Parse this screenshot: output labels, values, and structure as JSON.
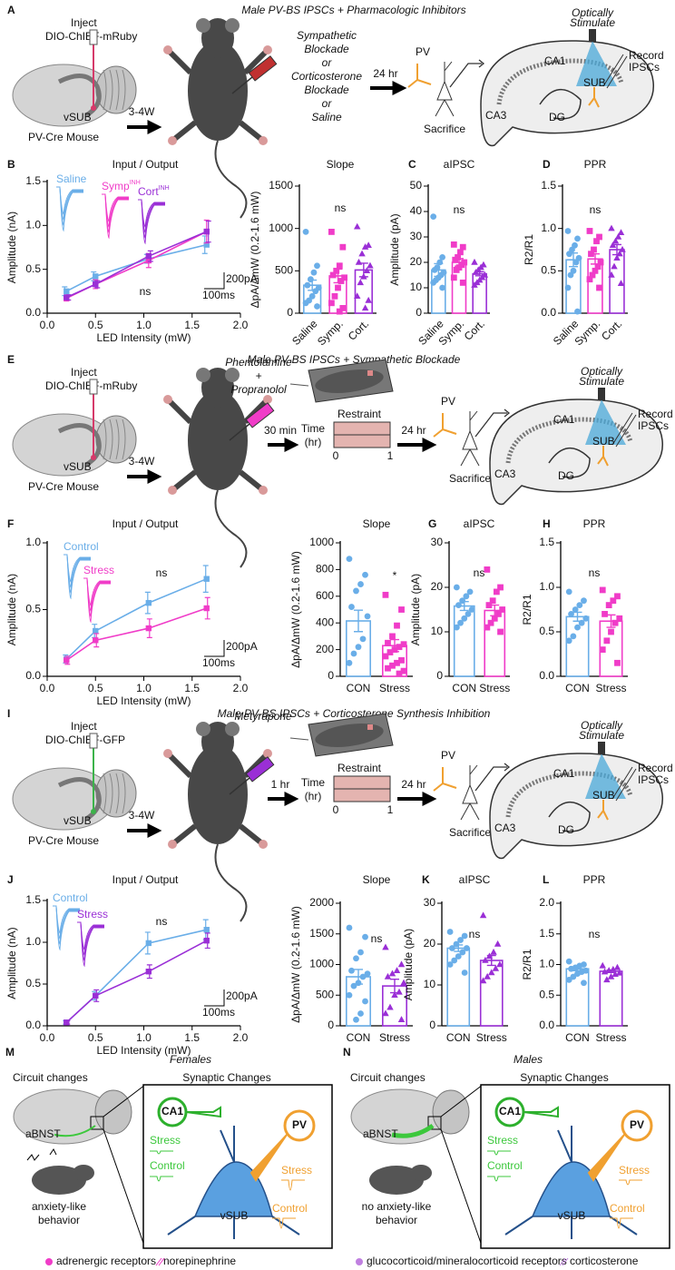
{
  "experiments": [
    {
      "letter": "A",
      "title": "Male PV-BS IPSCs + Pharmacologic Inhibitors",
      "inject": "Inject",
      "virus": "DIO-ChIEF-mRuby",
      "region": "vSUB",
      "mouse": "PV-Cre Mouse",
      "duration": "3-4W",
      "treatment": [
        "Sympathetic",
        "Blockade",
        "or",
        "Corticosterone",
        "Blockade",
        "or",
        "Saline"
      ],
      "treatment_colors": [
        "#f03cc8",
        "#f03cc8",
        "#000000",
        "#9a2fd6",
        "#9a2fd6",
        "#000000",
        "#6aaee8"
      ],
      "delay": "24 hr",
      "cell": "PV",
      "sacrifice": "Sacrifice",
      "stimulate": [
        "Optically",
        "Stimulate"
      ],
      "record": [
        "Record",
        "IPSCs"
      ],
      "areas": [
        "CA1",
        "CA3",
        "SUB",
        "DG"
      ]
    },
    {
      "letter": "E",
      "title": "Male PV-BS IPSCs + Sympathetic Blockade",
      "inject": "Inject",
      "virus": "DIO-ChIEF-mRuby",
      "region": "vSUB",
      "mouse": "PV-Cre Mouse",
      "duration": "3-4W",
      "treatment": [
        "Phentolamine",
        "+",
        "Propranolol"
      ],
      "treatment_colors": [
        "#f03cc8",
        "#000000",
        "#f03cc8"
      ],
      "wait": "30 min",
      "restraint": "Restraint",
      "time": [
        "Time",
        "(hr)"
      ],
      "time_ticks": [
        "0",
        "1"
      ],
      "delay": "24 hr",
      "cell": "PV",
      "sacrifice": "Sacrifice",
      "stimulate": [
        "Optically",
        "Stimulate"
      ],
      "record": [
        "Record",
        "IPSCs"
      ],
      "areas": [
        "CA1",
        "CA3",
        "SUB",
        "DG"
      ]
    },
    {
      "letter": "I",
      "title": "Male PV-BS IPSCs + Corticosterone Synthesis Inhibition",
      "inject": "Inject",
      "virus": "DIO-ChIEF-GFP",
      "region": "vSUB",
      "mouse": "PV-Cre Mouse",
      "duration": "3-4W",
      "treatment": [
        "Metyrapone"
      ],
      "treatment_colors": [
        "#9a2fd6"
      ],
      "wait": "1 hr",
      "restraint": "Restraint",
      "time": [
        "Time",
        "(hr)"
      ],
      "time_ticks": [
        "0",
        "1"
      ],
      "delay": "24 hr",
      "cell": "PV",
      "sacrifice": "Sacrifice",
      "stimulate": [
        "Optically",
        "Stimulate"
      ],
      "record": [
        "Record",
        "IPSCs"
      ],
      "areas": [
        "CA1",
        "CA3",
        "SUB",
        "DG"
      ]
    }
  ],
  "chart_data": [
    {
      "type": "line",
      "letter": "B",
      "title": "Input / Output",
      "xlabel": "LED Intensity (mW)",
      "ylabel": "Amplitude (nA)",
      "annotation": "ns",
      "scale": [
        "200pA",
        "100ms"
      ],
      "x": [
        0.2,
        0.5,
        1.05,
        1.65
      ],
      "xlim": [
        0,
        2
      ],
      "xticks": [
        {
          "value": 0,
          "label": "0.0"
        },
        0.5,
        {
          "value": 1,
          "label": "1.0"
        },
        1.5,
        {
          "value": 2,
          "label": "2.0"
        }
      ],
      "ylim": [
        0,
        1.5
      ],
      "yticks": [
        {
          "value": 0,
          "label": "0.0"
        },
        0.5,
        {
          "value": 1,
          "label": "1.0"
        },
        1.5
      ],
      "series": [
        {
          "name": "Saline",
          "color": "#6aaee8",
          "values": [
            0.25,
            0.42,
            0.62,
            0.78
          ],
          "errors": [
            0.05,
            0.05,
            0.05,
            0.1
          ]
        },
        {
          "name": "Symp",
          "superscript": "INH",
          "color": "#f03cc8",
          "values": [
            0.17,
            0.33,
            0.6,
            0.93
          ],
          "errors": [
            0.03,
            0.05,
            0.08,
            0.13
          ]
        },
        {
          "name": "Cort",
          "superscript": "INH",
          "color": "#9a2fd6",
          "values": [
            0.18,
            0.33,
            0.65,
            0.93
          ],
          "errors": [
            0.03,
            0.04,
            0.06,
            0.12
          ]
        }
      ]
    },
    {
      "type": "bar",
      "title": "Slope",
      "ylabel": "ΔpA/ΔmW (0.2-1.6 mW)",
      "annotation": "ns",
      "categories": [
        "Saline",
        "Symp.",
        "Cort."
      ],
      "colors": [
        "#6aaee8",
        "#f03cc8",
        "#9a2fd6"
      ],
      "markers": [
        "circle",
        "square",
        "triangle"
      ],
      "values": [
        330,
        440,
        510
      ],
      "errors": [
        60,
        80,
        80
      ],
      "ylim": [
        0,
        1500
      ],
      "yticks": [
        0,
        500,
        1000,
        1500
      ],
      "points": [
        [
          960,
          560,
          480,
          400,
          330,
          300,
          260,
          200,
          150,
          120,
          80
        ],
        [
          960,
          780,
          560,
          500,
          450,
          420,
          380,
          300,
          200,
          120,
          60,
          20
        ],
        [
          1020,
          800,
          780,
          700,
          600,
          560,
          500,
          430,
          360,
          200,
          150,
          60
        ]
      ]
    },
    {
      "type": "bar",
      "letter": "C",
      "title": "aIPSC",
      "ylabel": "Amplitude (pA)",
      "annotation": "ns",
      "categories": [
        "Saline",
        "Symp.",
        "Cort."
      ],
      "colors": [
        "#6aaee8",
        "#f03cc8",
        "#9a2fd6"
      ],
      "markers": [
        "circle",
        "square",
        "triangle"
      ],
      "values": [
        17,
        20,
        15.5
      ],
      "errors": [
        2.5,
        1.5,
        0.8
      ],
      "ylim": [
        0,
        50
      ],
      "yticks": [
        0,
        10,
        20,
        30,
        40,
        50
      ],
      "points": [
        [
          38,
          22,
          20,
          18,
          17,
          16,
          15,
          14,
          13,
          12,
          10
        ],
        [
          27,
          26,
          24,
          22,
          21,
          20,
          19,
          18,
          17,
          14,
          12
        ],
        [
          20,
          19,
          18,
          17,
          16,
          15,
          14,
          13,
          12,
          11
        ]
      ]
    },
    {
      "type": "bar",
      "letter": "D",
      "title": "PPR",
      "ylabel": "R2/R1",
      "annotation": "ns",
      "categories": [
        "Saline",
        "Symp.",
        "Cort."
      ],
      "colors": [
        "#6aaee8",
        "#f03cc8",
        "#9a2fd6"
      ],
      "markers": [
        "circle",
        "square",
        "triangle"
      ],
      "values": [
        0.63,
        0.64,
        0.75
      ],
      "errors": [
        0.08,
        0.06,
        0.06
      ],
      "ylim": [
        0,
        1.5
      ],
      "yticks": [
        {
          "value": 0,
          "label": "0.0"
        },
        0.5,
        {
          "value": 1,
          "label": "1.0"
        },
        1.5
      ],
      "points": [
        [
          0.97,
          0.88,
          0.8,
          0.75,
          0.7,
          0.65,
          0.6,
          0.5,
          0.45,
          0.3,
          0.02
        ],
        [
          0.97,
          0.9,
          0.85,
          0.75,
          0.7,
          0.6,
          0.55,
          0.5,
          0.45,
          0.4,
          0.3
        ],
        [
          1.0,
          0.95,
          0.9,
          0.85,
          0.8,
          0.75,
          0.7,
          0.65,
          0.55,
          0.45,
          0.35
        ]
      ]
    },
    {
      "type": "line",
      "letter": "F",
      "title": "Input / Output",
      "xlabel": "LED Intensity (mW)",
      "ylabel": "Amplitude (nA)",
      "annotation": "ns",
      "scale": [
        "200pA",
        "100ms"
      ],
      "x": [
        0.2,
        0.5,
        1.05,
        1.65
      ],
      "xlim": [
        0,
        2
      ],
      "xticks": [
        {
          "value": 0,
          "label": "0.0"
        },
        0.5,
        {
          "value": 1,
          "label": "1.0"
        },
        1.5,
        {
          "value": 2,
          "label": "2.0"
        }
      ],
      "ylim": [
        0,
        1
      ],
      "yticks": [
        {
          "value": 0,
          "label": "0.0"
        },
        0.5,
        {
          "value": 1,
          "label": "1.0"
        }
      ],
      "series": [
        {
          "name": "Control",
          "color": "#6aaee8",
          "values": [
            0.13,
            0.34,
            0.55,
            0.73
          ],
          "errors": [
            0.03,
            0.05,
            0.08,
            0.1
          ]
        },
        {
          "name": "Stress",
          "color": "#f03cc8",
          "values": [
            0.12,
            0.27,
            0.36,
            0.51
          ],
          "errors": [
            0.03,
            0.05,
            0.07,
            0.08
          ]
        }
      ]
    },
    {
      "type": "bar",
      "title": "Slope",
      "ylabel": "ΔpA/ΔmW (0.2-1.6 mW)",
      "annotation": "*",
      "categories": [
        "CON",
        "Stress"
      ],
      "colors": [
        "#6aaee8",
        "#f03cc8"
      ],
      "markers": [
        "circle",
        "square"
      ],
      "values": [
        415,
        230
      ],
      "errors": [
        80,
        45
      ],
      "ylim": [
        0,
        1000
      ],
      "yticks": [
        0,
        200,
        400,
        600,
        800,
        1000
      ],
      "points": [
        [
          880,
          760,
          690,
          640,
          520,
          450,
          280,
          220,
          170,
          100
        ],
        [
          610,
          500,
          380,
          300,
          250,
          240,
          220,
          200,
          180,
          150,
          120,
          100,
          80,
          60,
          40,
          20
        ]
      ]
    },
    {
      "type": "bar",
      "letter": "G",
      "title": "aIPSC",
      "ylabel": "Amplitude (pA)",
      "annotation": "ns",
      "categories": [
        "CON",
        "Stress"
      ],
      "colors": [
        "#6aaee8",
        "#f03cc8"
      ],
      "markers": [
        "circle",
        "square"
      ],
      "values": [
        15.8,
        14.8
      ],
      "errors": [
        1,
        1.2
      ],
      "ylim": [
        0,
        30
      ],
      "yticks": [
        0,
        10,
        20,
        30
      ],
      "points": [
        [
          20,
          19,
          18,
          17,
          16,
          15,
          14,
          13,
          12,
          11
        ],
        [
          24,
          20,
          19,
          17,
          16,
          15,
          14,
          13,
          12,
          11,
          10
        ]
      ]
    },
    {
      "type": "bar",
      "letter": "H",
      "title": "PPR",
      "ylabel": "R2/R1",
      "annotation": "ns",
      "categories": [
        "CON",
        "Stress"
      ],
      "colors": [
        "#6aaee8",
        "#f03cc8"
      ],
      "markers": [
        "circle",
        "square"
      ],
      "values": [
        0.67,
        0.62
      ],
      "errors": [
        0.05,
        0.07
      ],
      "ylim": [
        0,
        1.5
      ],
      "yticks": [
        {
          "value": 0,
          "label": "0.0"
        },
        0.5,
        {
          "value": 1,
          "label": "1.0"
        },
        1.5
      ],
      "points": [
        [
          0.95,
          0.85,
          0.8,
          0.75,
          0.7,
          0.65,
          0.6,
          0.55,
          0.45,
          0.4
        ],
        [
          0.97,
          0.9,
          0.85,
          0.8,
          0.7,
          0.65,
          0.6,
          0.5,
          0.4,
          0.3,
          0.15
        ]
      ]
    },
    {
      "type": "line",
      "letter": "J",
      "title": "Input / Output",
      "xlabel": "LED Intensity (mW)",
      "ylabel": "Amplitude (nA)",
      "annotation": "ns",
      "scale": [
        "200pA",
        "100ms"
      ],
      "x": [
        0.2,
        0.5,
        1.05,
        1.65
      ],
      "xlim": [
        0,
        2
      ],
      "xticks": [
        {
          "value": 0,
          "label": "0.0"
        },
        0.5,
        {
          "value": 1,
          "label": "1.0"
        },
        1.5,
        {
          "value": 2,
          "label": "2.0"
        }
      ],
      "ylim": [
        0,
        1.5
      ],
      "yticks": [
        {
          "value": 0,
          "label": "0.0"
        },
        0.5,
        {
          "value": 1,
          "label": "1.0"
        },
        1.5
      ],
      "series": [
        {
          "name": "Control",
          "color": "#6aaee8",
          "values": [
            0.04,
            0.36,
            0.99,
            1.15
          ],
          "errors": [
            0.02,
            0.05,
            0.13,
            0.12
          ]
        },
        {
          "name": "Stress",
          "color": "#9a2fd6",
          "values": [
            0.04,
            0.36,
            0.65,
            1.02
          ],
          "errors": [
            0.02,
            0.07,
            0.08,
            0.09
          ]
        }
      ]
    },
    {
      "type": "bar",
      "title": "Slope",
      "ylabel": "ΔpA/ΔmW (0.2-1.6 mW)",
      "annotation": "ns",
      "categories": [
        "CON",
        "Stress"
      ],
      "colors": [
        "#6aaee8",
        "#9a2fd6"
      ],
      "markers": [
        "circle",
        "triangle"
      ],
      "values": [
        800,
        650
      ],
      "errors": [
        120,
        110
      ],
      "ylim": [
        0,
        2000
      ],
      "yticks": [
        0,
        500,
        1000,
        1500,
        2000
      ],
      "points": [
        [
          1600,
          1450,
          1200,
          1100,
          900,
          850,
          800,
          700,
          650,
          500,
          400,
          200,
          100
        ],
        [
          1280,
          1000,
          900,
          850,
          800,
          700,
          550,
          500,
          300,
          200,
          100
        ]
      ]
    },
    {
      "type": "bar",
      "letter": "K",
      "title": "aIPSC",
      "ylabel": "Amplitude (pA)",
      "annotation": "ns",
      "categories": [
        "CON",
        "Stress"
      ],
      "colors": [
        "#6aaee8",
        "#9a2fd6"
      ],
      "markers": [
        "circle",
        "triangle"
      ],
      "values": [
        19,
        16
      ],
      "errors": [
        0.8,
        1.2
      ],
      "ylim": [
        0,
        30
      ],
      "yticks": [
        0,
        10,
        20,
        30
      ],
      "points": [
        [
          23,
          22,
          21,
          20,
          19,
          19,
          18,
          17,
          16,
          15,
          13
        ],
        [
          27,
          20,
          18,
          17,
          16,
          15,
          14,
          13,
          12,
          11
        ]
      ]
    },
    {
      "type": "bar",
      "letter": "L",
      "title": "PPR",
      "ylabel": "R2/R1",
      "annotation": "ns",
      "categories": [
        "CON",
        "Stress"
      ],
      "colors": [
        "#6aaee8",
        "#9a2fd6"
      ],
      "markers": [
        "circle",
        "triangle"
      ],
      "values": [
        0.93,
        0.89
      ],
      "errors": [
        0.03,
        0.02
      ],
      "ylim": [
        0,
        2
      ],
      "yticks": [
        {
          "value": 0,
          "label": "0.0"
        },
        0.5,
        {
          "value": 1,
          "label": "1.0"
        },
        1.5,
        {
          "value": 2,
          "label": "2.0"
        }
      ],
      "points": [
        [
          1.05,
          1.0,
          0.98,
          0.95,
          0.93,
          0.9,
          0.88,
          0.85,
          0.8,
          0.75,
          0.7
        ],
        [
          0.98,
          0.95,
          0.92,
          0.9,
          0.88,
          0.86,
          0.84,
          0.8,
          0.75
        ]
      ]
    }
  ],
  "summary": [
    {
      "letter": "M",
      "title": "Females",
      "circuit": "Circuit changes",
      "synaptic": "Synaptic Changes",
      "region": "aBNST",
      "behavior": [
        "anxiety-like",
        "behavior"
      ],
      "ca1": "CA1",
      "pv": "PV",
      "vsub": "vSUB",
      "ca1_traces": [
        "Stress",
        "Control"
      ],
      "pv_traces": [
        "Stress",
        "Control"
      ],
      "legend": [
        "adrenergic receptors",
        "norepinephrine"
      ]
    },
    {
      "letter": "N",
      "title": "Males",
      "circuit": "Circuit changes",
      "synaptic": "Synaptic Changes",
      "region": "aBNST",
      "behavior": [
        "no anxiety-like",
        "behavior"
      ],
      "ca1": "CA1",
      "pv": "PV",
      "vsub": "vSUB",
      "ca1_traces": [
        "Stress",
        "Control"
      ],
      "pv_traces": [
        "Stress",
        "Control"
      ],
      "legend": [
        "glucocorticoid/mineralocorticoid receptors",
        "corticosterone"
      ]
    }
  ]
}
